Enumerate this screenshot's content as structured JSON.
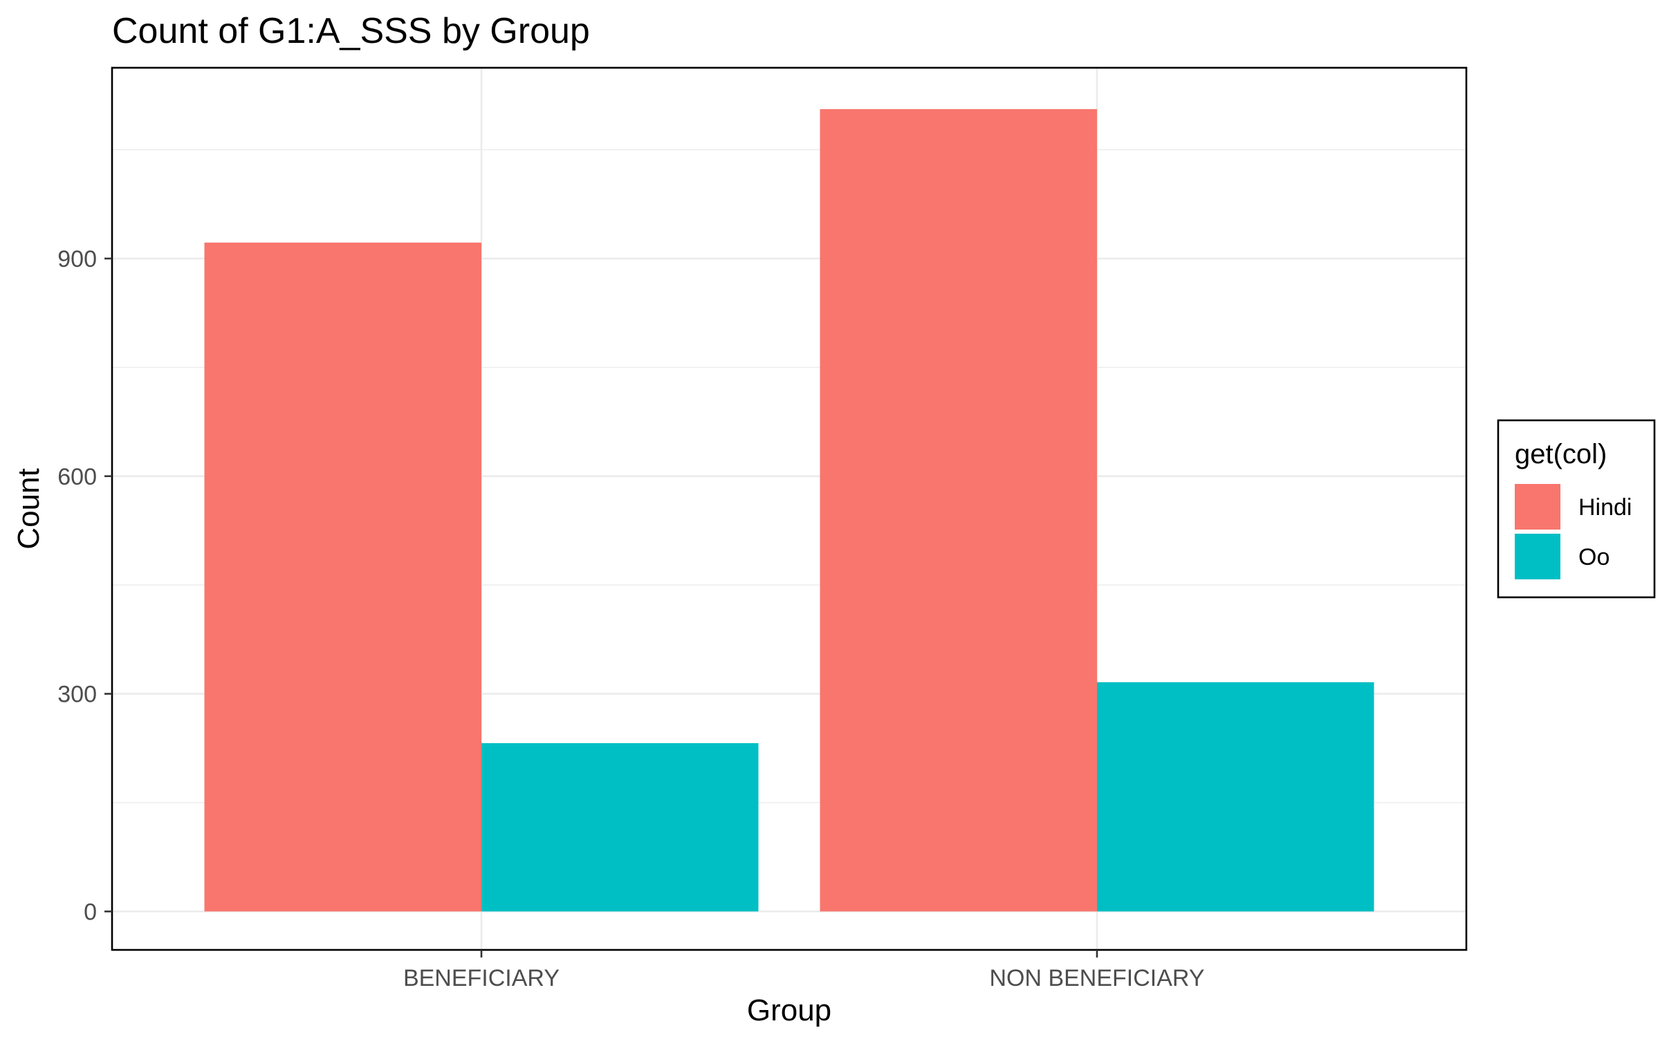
{
  "chart_data": {
    "type": "bar",
    "title": "Count of G1:A_SSS by Group",
    "xlabel": "Group",
    "ylabel": "Count",
    "categories": [
      "BENEFICIARY",
      "NON BENEFICIARY"
    ],
    "series": [
      {
        "name": "Hindi",
        "values": [
          922,
          1106
        ],
        "color": "#F8766D"
      },
      {
        "name": "Oo",
        "values": [
          232,
          316
        ],
        "color": "#00BFC4"
      }
    ],
    "ylim": [
      -53,
      1163
    ],
    "yticks": [
      0,
      300,
      600,
      900
    ],
    "grid": true,
    "legend": {
      "title": "get(col)",
      "position": "right"
    }
  }
}
